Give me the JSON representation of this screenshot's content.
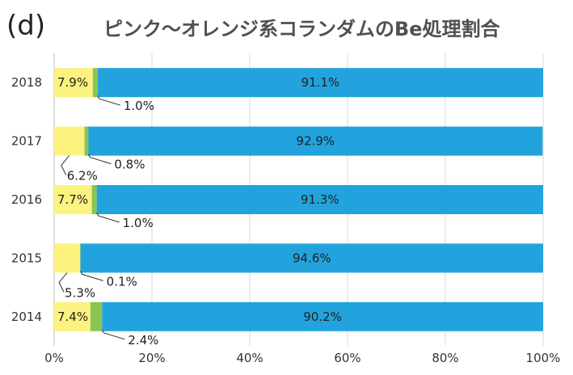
{
  "panel_label": "(d)",
  "chart_data": {
    "type": "bar",
    "orientation": "horizontal",
    "stacked": true,
    "percent_scale": true,
    "title": "ピンク〜オレンジ系コランダムのBe処理割合",
    "categories": [
      "2018",
      "2017",
      "2016",
      "2015",
      "2014"
    ],
    "series": [
      {
        "color": "#fcf27f",
        "values": [
          7.9,
          6.2,
          7.7,
          5.3,
          7.4
        ],
        "labels": [
          "7.9%",
          "6.2%",
          "7.7%",
          "5.3%",
          "7.4%"
        ]
      },
      {
        "color": "#8cc454",
        "values": [
          1.0,
          0.8,
          1.0,
          0.1,
          2.4
        ],
        "labels": [
          "1.0%",
          "0.8%",
          "1.0%",
          "0.1%",
          "2.4%"
        ]
      },
      {
        "color": "#22a3dd",
        "values": [
          91.1,
          92.9,
          91.3,
          94.6,
          90.2
        ],
        "labels": [
          "91.1%",
          "92.9%",
          "91.3%",
          "94.6%",
          "90.2%"
        ]
      }
    ],
    "xlim": [
      0,
      100
    ],
    "xticks": [
      "0%",
      "20%",
      "40%",
      "60%",
      "80%",
      "100%"
    ],
    "grid": true,
    "legend": "none"
  }
}
